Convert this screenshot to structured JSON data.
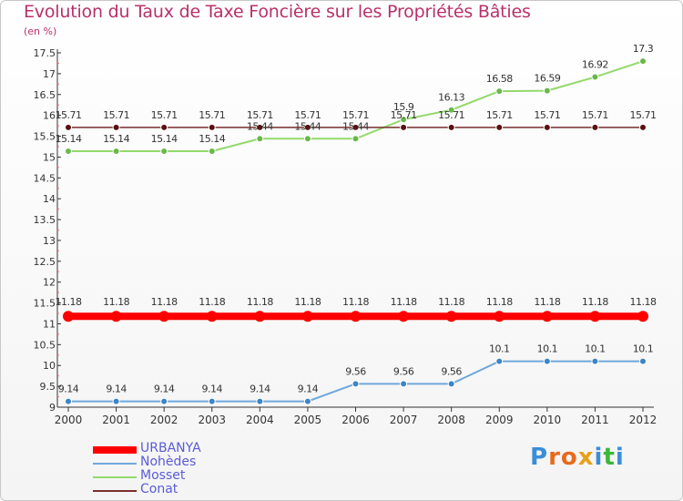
{
  "title": "Evolution du Taux de Taxe Foncière sur les Propriétés Bâties",
  "unit_label": "(en %)",
  "brand": {
    "letters": [
      "P",
      "r",
      "o",
      "x",
      "i",
      "t",
      "i"
    ],
    "colors": [
      "#3a8ed8",
      "#e86a1c",
      "#e86a1c",
      "#e8a01c",
      "#3a8ed8",
      "#3ab83a",
      "#3a8ed8"
    ]
  },
  "colors": {
    "URBANYA": "#ff0000",
    "Nohèdes": "#6fa8dc",
    "Mosset": "#93d96b",
    "Conat": "#7a2e2e",
    "marker_URBANYA": "#ff0000",
    "marker_Nohèdes": "#3d85c6",
    "marker_Mosset": "#6ab84a",
    "marker_Conat": "#5a1010",
    "tick_labels": "#333333",
    "value_labels": "#333333",
    "grid_ticks": "#ff6666"
  },
  "chart_data": {
    "type": "line",
    "title": "Evolution du Taux de Taxe Foncière sur les Propriétés Bâties",
    "ylabel": "(en %)",
    "xlabel": "",
    "x": [
      "2000",
      "2001",
      "2002",
      "2003",
      "2004",
      "2005",
      "2006",
      "2007",
      "2008",
      "2009",
      "2010",
      "2011",
      "2012"
    ],
    "ylim": [
      9,
      17.5
    ],
    "yticks": [
      "9",
      "9.5",
      "10",
      "10.5",
      "11",
      "11.5",
      "12",
      "12.5",
      "13",
      "13.5",
      "14",
      "14.5",
      "15",
      "15.5",
      "16",
      "16.5",
      "17",
      "17.5"
    ],
    "legend_position": "bottom-left",
    "grid": false,
    "series": [
      {
        "name": "URBANYA",
        "values": [
          11.18,
          11.18,
          11.18,
          11.18,
          11.18,
          11.18,
          11.18,
          11.18,
          11.18,
          11.18,
          11.18,
          11.18,
          11.18
        ],
        "labels": [
          "11.18",
          "11.18",
          "11.18",
          "11.18",
          "11.18",
          "11.18",
          "11.18",
          "11.18",
          "11.18",
          "11.18",
          "11.18",
          "11.18",
          "11.18"
        ]
      },
      {
        "name": "Nohèdes",
        "values": [
          9.14,
          9.14,
          9.14,
          9.14,
          9.14,
          9.14,
          9.56,
          9.56,
          9.56,
          10.1,
          10.1,
          10.1,
          10.1
        ],
        "labels": [
          "9.14",
          "9.14",
          "9.14",
          "9.14",
          "9.14",
          "9.14",
          "9.56",
          "9.56",
          "9.56",
          "10.1",
          "10.1",
          "10.1",
          "10.1"
        ]
      },
      {
        "name": "Mosset",
        "values": [
          15.14,
          15.14,
          15.14,
          15.14,
          15.44,
          15.44,
          15.44,
          15.9,
          16.13,
          16.58,
          16.59,
          16.92,
          17.3
        ],
        "labels": [
          "15.14",
          "15.14",
          "15.14",
          "15.14",
          "15.44",
          "15.44",
          "15.44",
          "15.9",
          "16.13",
          "16.58",
          "16.59",
          "16.92",
          "17.3"
        ]
      },
      {
        "name": "Conat",
        "values": [
          15.71,
          15.71,
          15.71,
          15.71,
          15.71,
          15.71,
          15.71,
          15.71,
          15.71,
          15.71,
          15.71,
          15.71,
          15.71
        ],
        "labels": [
          "15.71",
          "15.71",
          "15.71",
          "15.71",
          "15.71",
          "15.71",
          "15.71",
          "15.71",
          "15.71",
          "15.71",
          "15.71",
          "15.71",
          "15.71"
        ]
      }
    ]
  }
}
